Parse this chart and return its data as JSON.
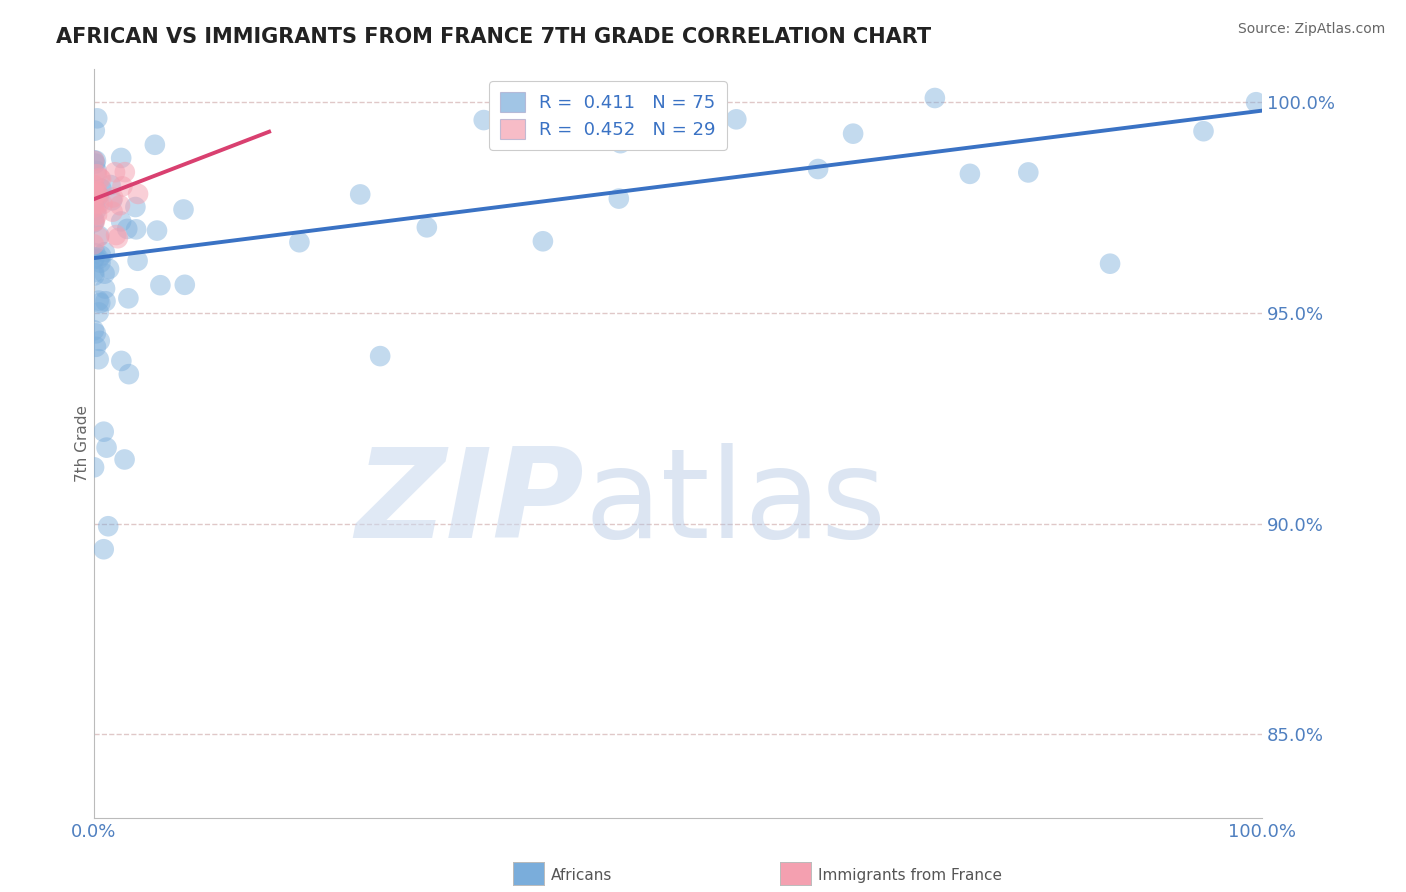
{
  "title": "AFRICAN VS IMMIGRANTS FROM FRANCE 7TH GRADE CORRELATION CHART",
  "source": "Source: ZipAtlas.com",
  "ylabel": "7th Grade",
  "xlim": [
    0.0,
    1.0
  ],
  "ylim": [
    0.83,
    1.008
  ],
  "yticks": [
    0.85,
    0.9,
    0.95,
    1.0
  ],
  "ytick_labels": [
    "85.0%",
    "90.0%",
    "95.0%",
    "100.0%"
  ],
  "blue_R": "0.411",
  "blue_N": "75",
  "pink_R": "0.452",
  "pink_N": "29",
  "blue_color": "#7aaddb",
  "pink_color": "#f4a0b0",
  "blue_line_color": "#3a72c4",
  "pink_line_color": "#d94070",
  "axis_label_color": "#5080c0",
  "grid_color": "#e0c8c8",
  "blue_trendline_x": [
    0.0,
    1.0
  ],
  "blue_trendline_y": [
    0.963,
    0.998
  ],
  "pink_trendline_x": [
    0.0,
    0.15
  ],
  "pink_trendline_y": [
    0.977,
    0.993
  ]
}
